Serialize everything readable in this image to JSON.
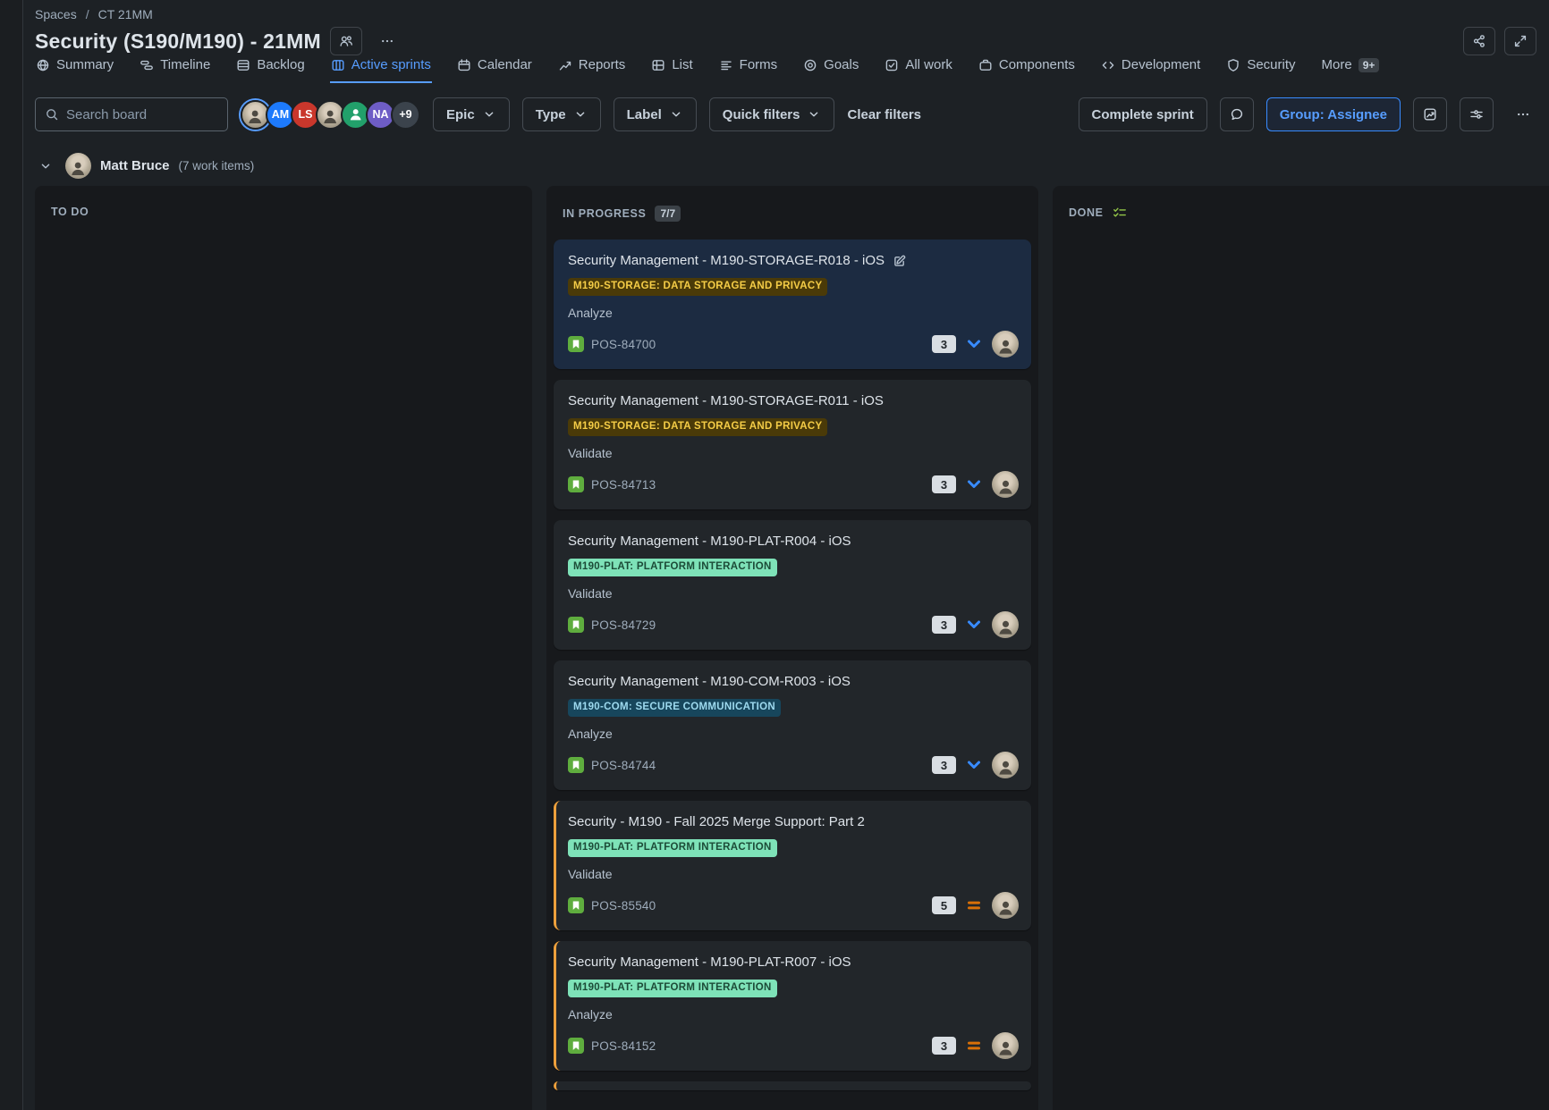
{
  "breadcrumb": {
    "items": [
      "Spaces",
      "CT 21MM"
    ],
    "separator": "/"
  },
  "header": {
    "title": "Security (S190/M190) - 21MM"
  },
  "tabs": [
    {
      "label": "Summary",
      "icon": "globe"
    },
    {
      "label": "Timeline",
      "icon": "timeline"
    },
    {
      "label": "Backlog",
      "icon": "backlog"
    },
    {
      "label": "Active sprints",
      "icon": "board",
      "active": true
    },
    {
      "label": "Calendar",
      "icon": "calendar"
    },
    {
      "label": "Reports",
      "icon": "reports"
    },
    {
      "label": "List",
      "icon": "list"
    },
    {
      "label": "Forms",
      "icon": "forms"
    },
    {
      "label": "Goals",
      "icon": "goals"
    },
    {
      "label": "All work",
      "icon": "all-work"
    },
    {
      "label": "Components",
      "icon": "components"
    },
    {
      "label": "Development",
      "icon": "development"
    },
    {
      "label": "Security",
      "icon": "security"
    },
    {
      "label": "More",
      "badge": "9+"
    }
  ],
  "toolbar": {
    "search_placeholder": "Search board",
    "avatars": [
      {
        "type": "photo",
        "selected": true
      },
      {
        "type": "initials",
        "text": "AM",
        "color": "#1D7AFC"
      },
      {
        "type": "initials",
        "text": "LS",
        "color": "#C9372C"
      },
      {
        "type": "photo"
      },
      {
        "type": "person",
        "color": "#22A06B"
      },
      {
        "type": "initials",
        "text": "NA",
        "color": "#6E5DC6"
      },
      {
        "type": "overflow",
        "text": "+9",
        "color": "#3B434C"
      }
    ],
    "filters": [
      {
        "label": "Epic"
      },
      {
        "label": "Type"
      },
      {
        "label": "Label"
      },
      {
        "label": "Quick filters"
      }
    ],
    "clear_filters": "Clear filters",
    "complete_sprint": "Complete sprint",
    "group_by": "Group: Assignee"
  },
  "group": {
    "name": "Matt Bruce",
    "count": "(7 work items)"
  },
  "board": {
    "columns": [
      {
        "title": "TO DO"
      },
      {
        "title": "IN PROGRESS",
        "count_badge": "7/7"
      },
      {
        "title": "DONE",
        "icon": "checklist"
      }
    ]
  },
  "cards": [
    {
      "title": "Security Management - M190-STORAGE-R018 - iOS",
      "has_edit_button": true,
      "selected": true,
      "flagged": false,
      "label": {
        "text": "M190-STORAGE: DATA STORAGE AND PRIVACY",
        "variant": "yellow"
      },
      "status": "Analyze",
      "key": "POS-84700",
      "estimate": "3",
      "priority": "low"
    },
    {
      "title": "Security Management - M190-STORAGE-R011 - iOS",
      "flagged": false,
      "label": {
        "text": "M190-STORAGE: DATA STORAGE AND PRIVACY",
        "variant": "yellow"
      },
      "status": "Validate",
      "key": "POS-84713",
      "estimate": "3",
      "priority": "low"
    },
    {
      "title": "Security Management - M190-PLAT-R004 - iOS",
      "flagged": false,
      "label": {
        "text": "M190-PLAT: PLATFORM INTERACTION",
        "variant": "green"
      },
      "status": "Validate",
      "key": "POS-84729",
      "estimate": "3",
      "priority": "low"
    },
    {
      "title": "Security Management - M190-COM-R003 - iOS",
      "flagged": false,
      "label": {
        "text": "M190-COM: SECURE COMMUNICATION",
        "variant": "blue"
      },
      "status": "Analyze",
      "key": "POS-84744",
      "estimate": "3",
      "priority": "low"
    },
    {
      "title": "Security - M190 - Fall 2025 Merge Support: Part 2",
      "flagged": true,
      "label": {
        "text": "M190-PLAT: PLATFORM INTERACTION",
        "variant": "green"
      },
      "status": "Validate",
      "key": "POS-85540",
      "estimate": "5",
      "priority": "medium"
    },
    {
      "title": "Security Management - M190-PLAT-R007 - iOS",
      "flagged": true,
      "label": {
        "text": "M190-PLAT: PLATFORM INTERACTION",
        "variant": "green"
      },
      "status": "Analyze",
      "key": "POS-84152",
      "estimate": "3",
      "priority": "medium"
    },
    {
      "partial": true,
      "flagged": true
    }
  ],
  "colors": {
    "page_bg": "#1D2125",
    "column_bg": "#17191C",
    "card_bg": "#22262A",
    "selected_card_bg": "#1C2B41",
    "accent_blue": "#579DFF",
    "group_button_border": "#388BFF",
    "count_pill_bg": "#3B4147",
    "label_yellow_bg": "#4A3A08",
    "label_yellow_text": "#F5CD47",
    "label_green_bg": "#7EE2B8",
    "label_green_text": "#1C4B37",
    "label_blue_bg": "#17465C",
    "label_blue_text": "#9DD9EE",
    "priority_low": "#388BFF",
    "priority_medium": "#D97008",
    "flag_orange": "#EDA03C",
    "story_green": "#5FAD3E",
    "done_icon": "#94C748",
    "estimate_bg": "#D9DEE3",
    "estimate_text": "#22272B"
  }
}
